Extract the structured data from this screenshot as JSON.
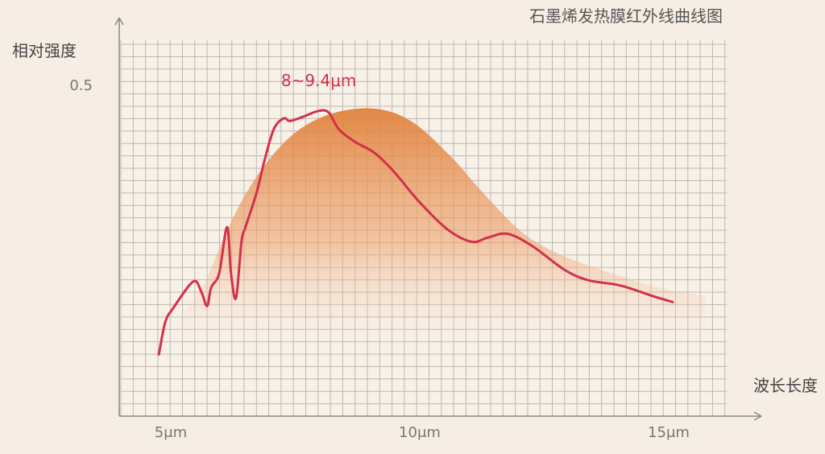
{
  "chart_data": {
    "type": "line",
    "title": "石墨烯发热膜红外线曲线图",
    "ylabel": "相对强度",
    "xlabel": "波长长度",
    "x_ticks": [
      {
        "value": 5,
        "label": "5μm"
      },
      {
        "value": 10,
        "label": "10μm"
      },
      {
        "value": 15,
        "label": "15μm"
      }
    ],
    "y_ticks": [
      {
        "value": 0.5,
        "label": "0.5"
      }
    ],
    "xlim": [
      3.95,
      16.9
    ],
    "ylim": [
      0,
      0.6
    ],
    "grid": true,
    "annotation": {
      "text": "8~9.4μm",
      "x": 8.7,
      "y": 0.49
    },
    "series": [
      {
        "role": "measured-curve",
        "style": "line",
        "color": "#d3304b",
        "x": [
          4.76,
          4.89,
          5.05,
          5.45,
          5.61,
          5.73,
          5.81,
          5.97,
          6.13,
          6.21,
          6.31,
          6.42,
          6.5,
          6.72,
          6.88,
          7.07,
          7.27,
          7.39,
          7.64,
          7.96,
          8.17,
          8.37,
          8.69,
          9.09,
          9.5,
          9.98,
          10.55,
          11.04,
          11.36,
          11.76,
          12.25,
          12.9,
          13.38,
          14.03,
          14.68,
          15.08
        ],
        "y": [
          0.093,
          0.142,
          0.163,
          0.203,
          0.188,
          0.166,
          0.194,
          0.215,
          0.285,
          0.215,
          0.178,
          0.263,
          0.285,
          0.336,
          0.385,
          0.433,
          0.449,
          0.445,
          0.451,
          0.46,
          0.458,
          0.433,
          0.414,
          0.397,
          0.367,
          0.324,
          0.282,
          0.263,
          0.269,
          0.275,
          0.257,
          0.221,
          0.205,
          0.197,
          0.181,
          0.172
        ]
      },
      {
        "role": "reference-area",
        "style": "area",
        "color": "#e0823c",
        "x": [
          5.7,
          6.42,
          7.23,
          8.04,
          9.01,
          9.82,
          10.63,
          11.28,
          12.09,
          12.9,
          13.87,
          14.84,
          15.73
        ],
        "y": [
          0.203,
          0.324,
          0.409,
          0.451,
          0.464,
          0.445,
          0.391,
          0.336,
          0.275,
          0.241,
          0.215,
          0.193,
          0.181
        ]
      }
    ]
  }
}
